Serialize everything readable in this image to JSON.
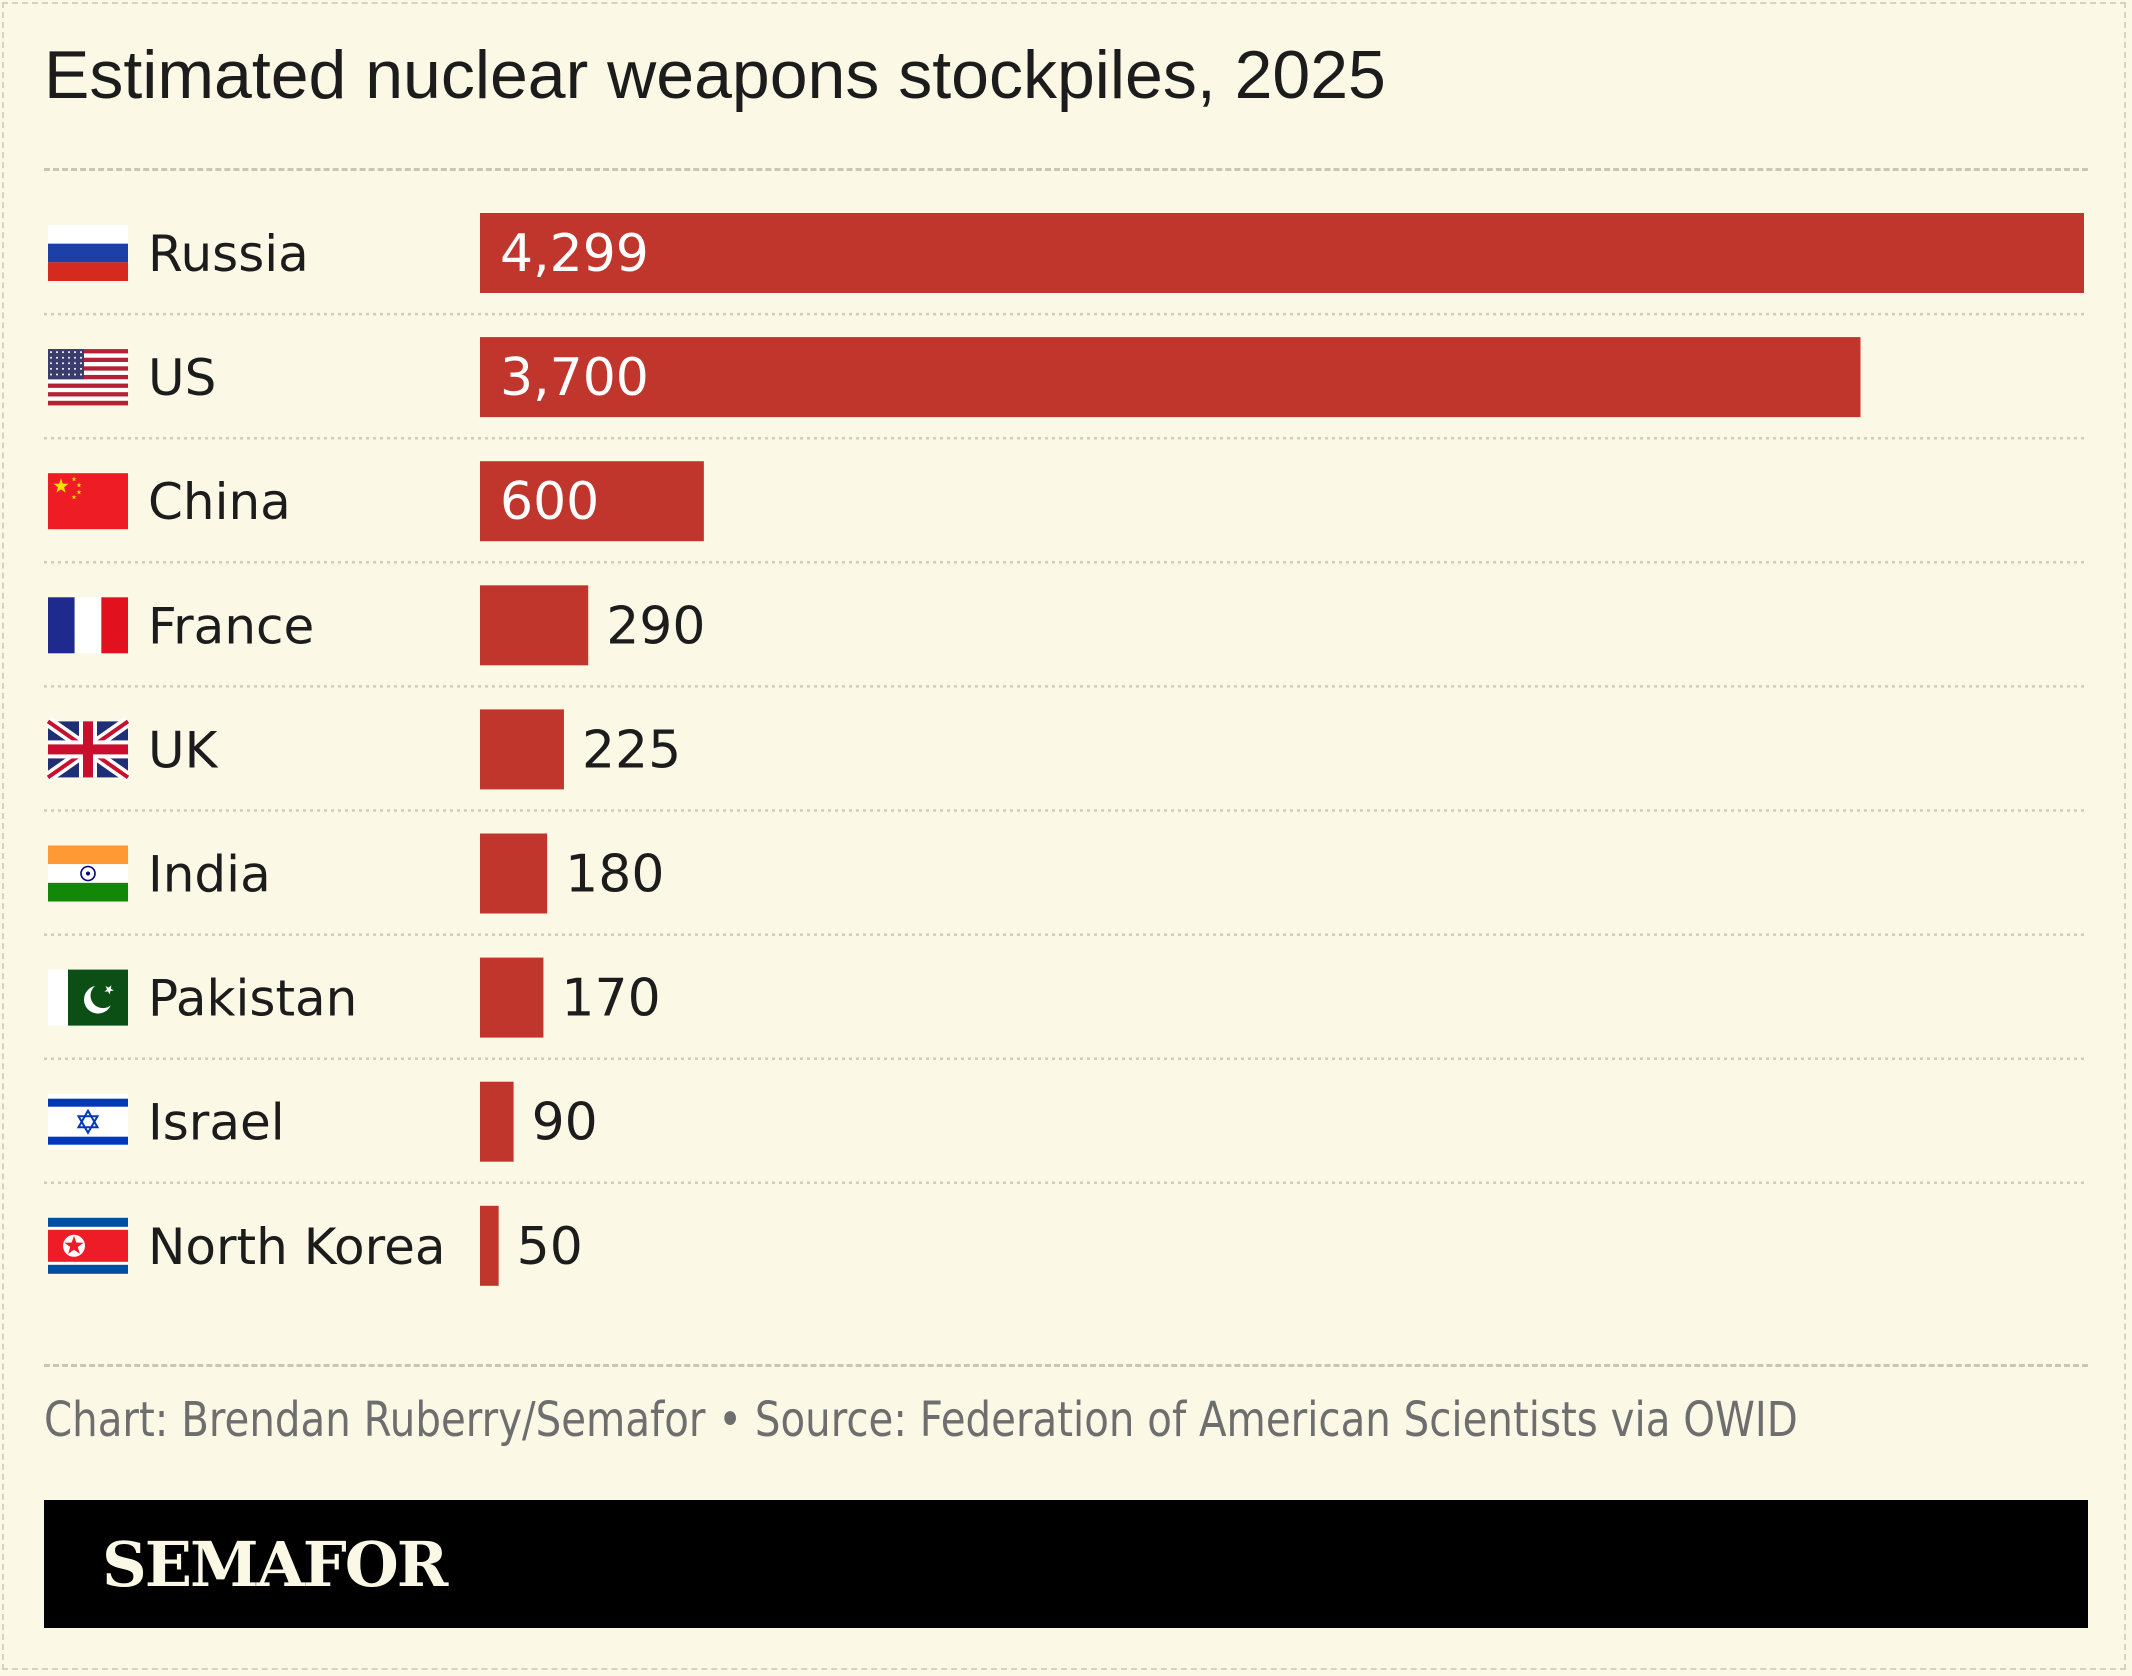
{
  "header": {
    "title": "Estimated nuclear weapons stockpiles, 2025"
  },
  "chart_data": {
    "type": "bar",
    "orientation": "horizontal",
    "title": "Estimated nuclear weapons stockpiles, 2025",
    "categories": [
      "Russia",
      "US",
      "China",
      "France",
      "UK",
      "India",
      "Pakistan",
      "Israel",
      "North Korea"
    ],
    "values": [
      4299,
      3700,
      600,
      290,
      225,
      180,
      170,
      90,
      50
    ],
    "value_labels": [
      "4,299",
      "3,700",
      "600",
      "290",
      "225",
      "180",
      "170",
      "90",
      "50"
    ],
    "xlim": [
      0,
      4299
    ],
    "grid": false,
    "legend": "none",
    "bar_color": "#c0362c",
    "flag_icons": [
      "flag-russia-icon",
      "flag-us-icon",
      "flag-china-icon",
      "flag-france-icon",
      "flag-uk-icon",
      "flag-india-icon",
      "flag-pakistan-icon",
      "flag-israel-icon",
      "flag-north-korea-icon"
    ]
  },
  "footer": {
    "credit": "Chart: Brendan Ruberry/Semafor • Source: Federation of American Scientists via OWID",
    "brand": "SEMAFOR"
  },
  "colors": {
    "background": "#fbf8e6",
    "bar": "#c0362c",
    "text": "#1c1c1c",
    "muted_text": "#6e6e6e",
    "brand_bar": "#000000",
    "brand_text": "#fbf8e6"
  }
}
